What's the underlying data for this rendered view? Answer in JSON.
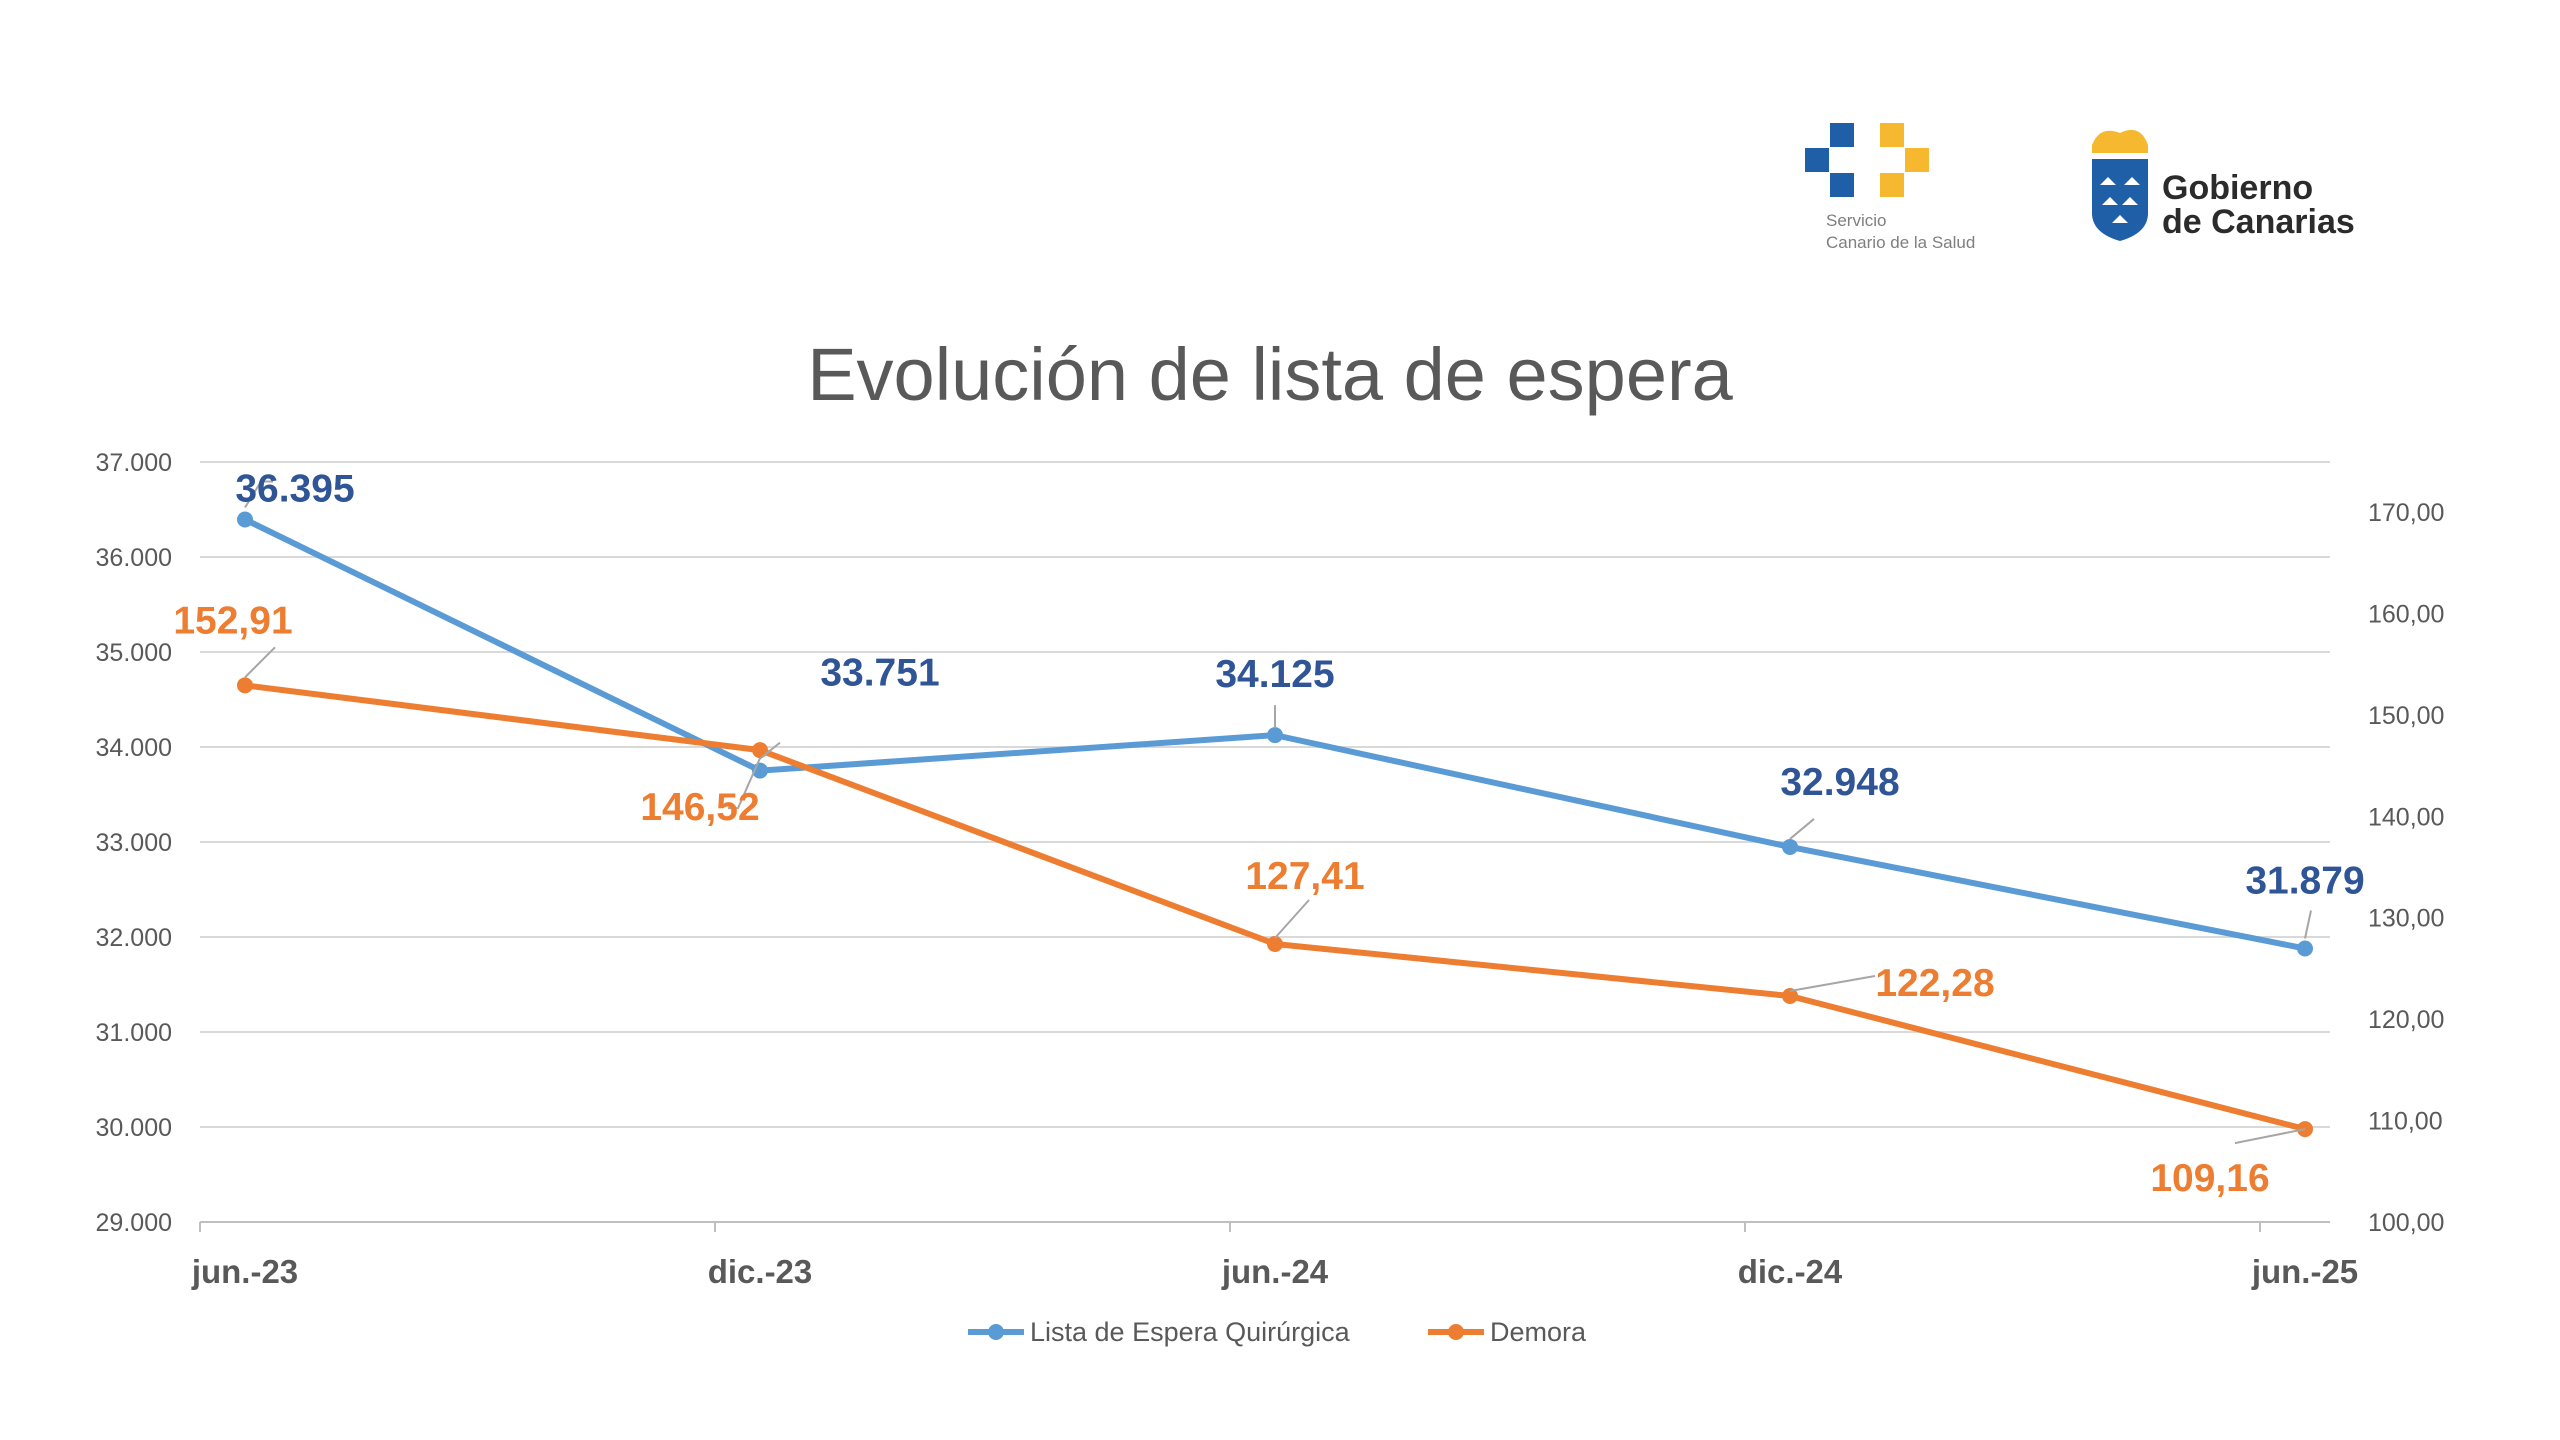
{
  "logos": {
    "scs": {
      "line1": "Servicio",
      "line2": "Canario de la Salud",
      "colors": [
        "#1f5fa8",
        "#f5b82e"
      ]
    },
    "gobierno": {
      "line1": "Gobierno",
      "line2": "de Canarias",
      "color": "#1f5fa8",
      "crown_color": "#f5b82e"
    }
  },
  "chart_data": {
    "type": "line",
    "title": "Evolución de lista de espera",
    "categories": [
      "jun.-23",
      "dic.-23",
      "jun.-24",
      "dic.-24",
      "jun.-25"
    ],
    "series": [
      {
        "name": "Lista de Espera Quirúrgica",
        "axis": "left",
        "color": "#5b9bd5",
        "label_color": "#2f5597",
        "values": [
          36395,
          33751,
          34125,
          32948,
          31879
        ],
        "labels": [
          "36.395",
          "33.751",
          "34.125",
          "32.948",
          "31.879"
        ]
      },
      {
        "name": "Demora",
        "axis": "right",
        "color": "#ed7d31",
        "label_color": "#ed7d31",
        "values": [
          152.91,
          146.52,
          127.41,
          122.28,
          109.16
        ],
        "labels": [
          "152,91",
          "146,52",
          "127,41",
          "122,28",
          "109,16"
        ]
      }
    ],
    "y_left": {
      "min": 29000,
      "max": 37000,
      "step": 1000,
      "ticks": [
        "29.000",
        "30.000",
        "31.000",
        "32.000",
        "33.000",
        "34.000",
        "35.000",
        "36.000",
        "37.000"
      ]
    },
    "y_right": {
      "min": 100,
      "max": 170,
      "step": 10,
      "ticks": [
        "100,00",
        "110,00",
        "120,00",
        "130,00",
        "140,00",
        "150,00",
        "160,00",
        "170,00"
      ]
    },
    "grid": true,
    "legend_position": "bottom"
  }
}
